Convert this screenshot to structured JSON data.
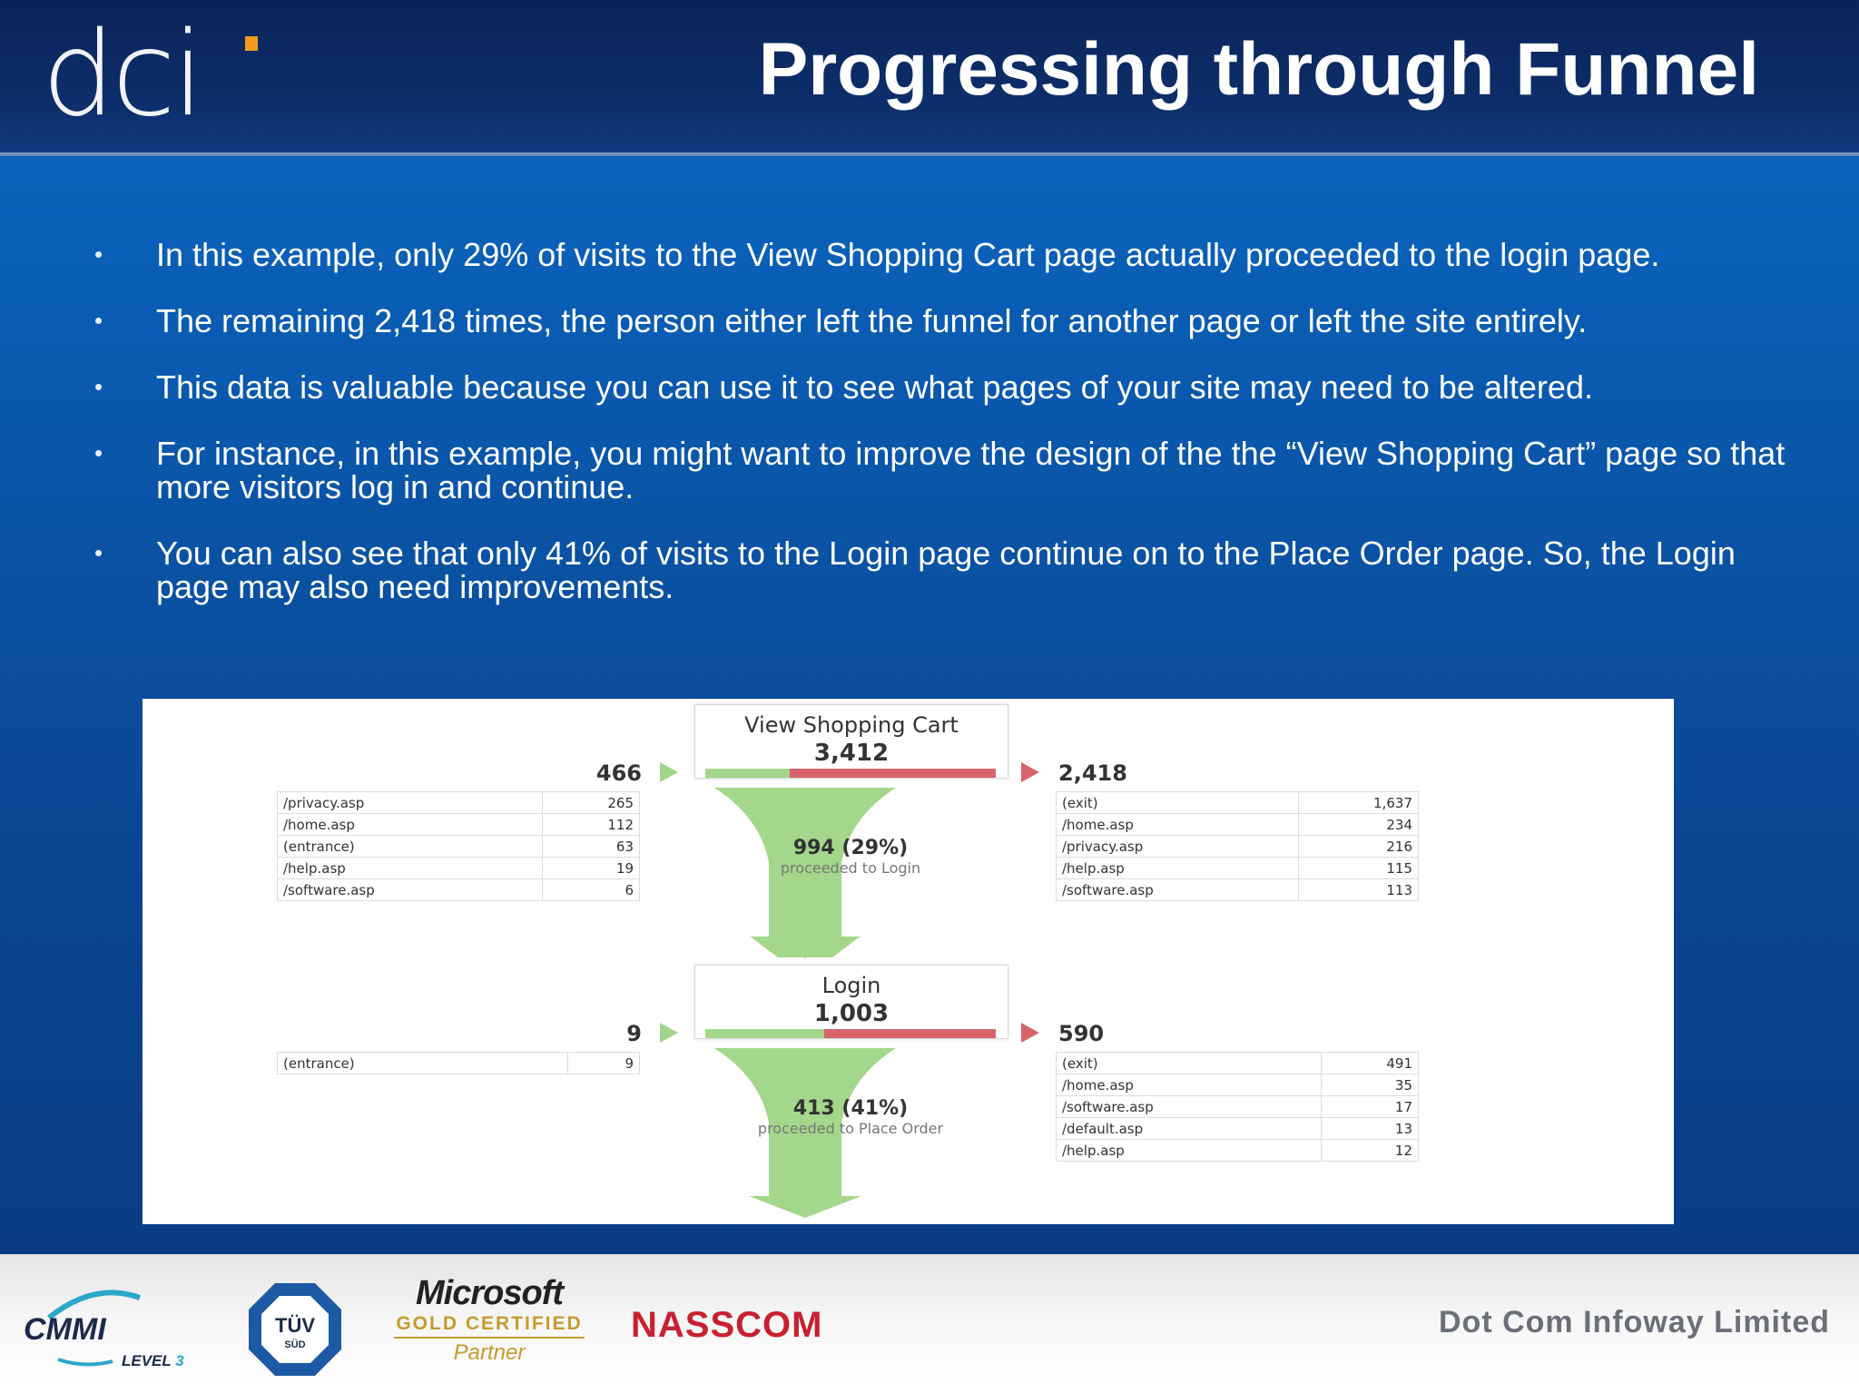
{
  "header": {
    "logo_text": "dc",
    "logo_i": "i",
    "title": "Progressing through Funnel"
  },
  "bullets": [
    "In this example, only 29% of visits to the View Shopping Cart page actually proceeded to the login page.",
    "The remaining 2,418 times, the person either left the funnel for another page or left the site entirely.",
    "This data is valuable because you can use it to see what pages of your site may need to be altered.",
    "For instance, in this example, you might want to improve the design of the the “View Shopping Cart” page so that more visitors log in and continue.",
    "You can also see that only 41% of visits to the Login page continue on to the Place Order page. So, the Login page may also need improvements."
  ],
  "bullet_glyph": "•",
  "funnel": {
    "stage1": {
      "name": "View Shopping Cart",
      "count": "3,412",
      "entered": "466",
      "exited": "2,418",
      "proceed_main": "994 (29%)",
      "proceed_sub": "proceeded to Login",
      "proceed_fraction": 0.29,
      "sources": [
        {
          "page": "/privacy.asp",
          "value": "265"
        },
        {
          "page": "/home.asp",
          "value": "112"
        },
        {
          "page": "(entrance)",
          "value": "63"
        },
        {
          "page": "/help.asp",
          "value": "19"
        },
        {
          "page": "/software.asp",
          "value": "6"
        }
      ],
      "exits": [
        {
          "page": "(exit)",
          "value": "1,637"
        },
        {
          "page": "/home.asp",
          "value": "234"
        },
        {
          "page": "/privacy.asp",
          "value": "216"
        },
        {
          "page": "/help.asp",
          "value": "115"
        },
        {
          "page": "/software.asp",
          "value": "113"
        }
      ]
    },
    "stage2": {
      "name": "Login",
      "count": "1,003",
      "entered": "9",
      "exited": "590",
      "proceed_main": "413 (41%)",
      "proceed_sub": "proceeded to Place Order",
      "proceed_fraction": 0.41,
      "sources": [
        {
          "page": "(entrance)",
          "value": "9"
        }
      ],
      "exits": [
        {
          "page": "(exit)",
          "value": "491"
        },
        {
          "page": "/home.asp",
          "value": "35"
        },
        {
          "page": "/software.asp",
          "value": "17"
        },
        {
          "page": "/default.asp",
          "value": "13"
        },
        {
          "page": "/help.asp",
          "value": "12"
        }
      ]
    },
    "colors": {
      "proceed": "#a3d78b",
      "exit": "#d9636a"
    }
  },
  "footer": {
    "cmmi": "CMMI",
    "cmmi_level": "LEVEL",
    "cmmi_level_num": "3",
    "tuv": "TÜV",
    "tuv_sub": "SÜD",
    "ms_name": "Microsoft",
    "ms_gold": "GOLD CERTIFIED",
    "ms_partner": "Partner",
    "nasscom": "NASSCOM",
    "company": "Dot Com Infoway Limited"
  }
}
